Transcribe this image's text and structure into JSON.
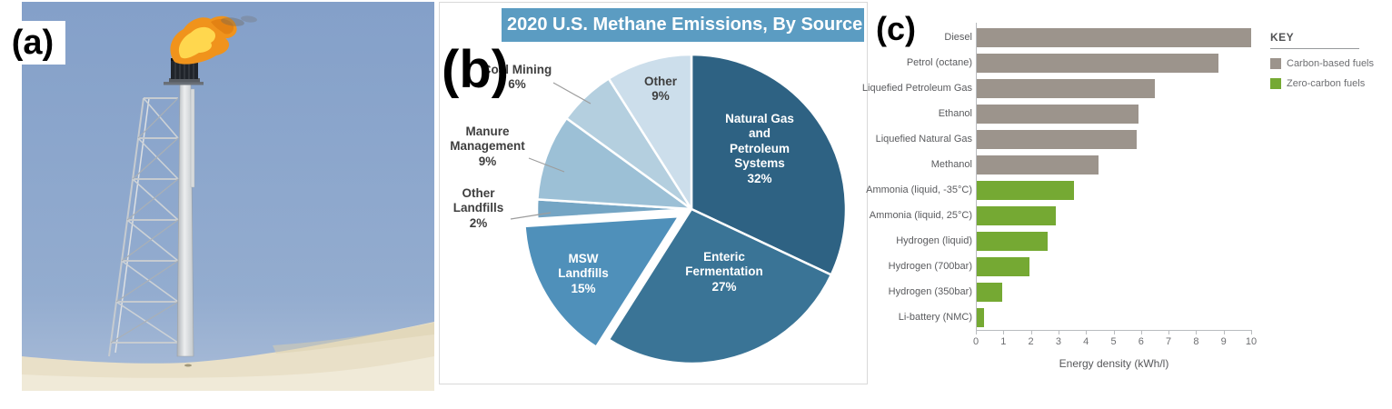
{
  "figure": {
    "panel_a_label": "(a)",
    "panel_b_label": "(b)",
    "panel_c_label": "(c)"
  },
  "chart_data": [
    {
      "type": "pie",
      "title": "2020 U.S. Methane Emissions, By Source",
      "title_bar_color": "#5b9cc2",
      "direction": "clockwise",
      "start_angle_deg_from_top": 0,
      "slices": [
        {
          "label": "Natural Gas and Petroleum Systems",
          "pct": 32,
          "color": "#2e6283",
          "label_lines": [
            "Natural Gas",
            "and",
            "Petroleum",
            "Systems",
            "32%"
          ],
          "label_placement": "inside",
          "exploded": false
        },
        {
          "label": "Enteric Fermentation",
          "pct": 27,
          "color": "#3a7496",
          "label_lines": [
            "Enteric",
            "Fermentation",
            "27%"
          ],
          "label_placement": "inside",
          "exploded": false
        },
        {
          "label": "MSW Landfills",
          "pct": 15,
          "color": "#4f90ba",
          "label_lines": [
            "MSW",
            "Landfills",
            "15%"
          ],
          "label_placement": "inside",
          "exploded": true
        },
        {
          "label": "Other Landfills",
          "pct": 2,
          "color": "#74a5c4",
          "label_lines": [
            "Other",
            "Landfills",
            "2%"
          ],
          "label_placement": "outside",
          "exploded": false
        },
        {
          "label": "Manure Management",
          "pct": 9,
          "color": "#9cc0d6",
          "label_lines": [
            "Manure",
            "Management",
            "9%"
          ],
          "label_placement": "outside",
          "exploded": false
        },
        {
          "label": "Coal Mining",
          "pct": 6,
          "color": "#b4cfdf",
          "label_lines": [
            "Coal Mining",
            "6%"
          ],
          "label_placement": "outside",
          "exploded": false
        },
        {
          "label": "Other",
          "pct": 9,
          "color": "#ccdeeb",
          "label_lines": [
            "Other",
            "9%"
          ],
          "label_placement": "outside",
          "exploded": false
        }
      ]
    },
    {
      "type": "bar",
      "orientation": "horizontal",
      "xlabel": "Energy density (kWh/l)",
      "xlim": [
        0,
        10
      ],
      "xticks": [
        0,
        1,
        2,
        3,
        4,
        5,
        6,
        7,
        8,
        9,
        10
      ],
      "grid": false,
      "bars": [
        {
          "label": "Diesel",
          "value": 10.0,
          "group": "Carbon-based fuels"
        },
        {
          "label": "Petrol (octane)",
          "value": 8.8,
          "group": "Carbon-based fuels"
        },
        {
          "label": "Liquefied Petroleum Gas",
          "value": 6.5,
          "group": "Carbon-based fuels"
        },
        {
          "label": "Ethanol",
          "value": 5.9,
          "group": "Carbon-based fuels"
        },
        {
          "label": "Liquefied Natural Gas",
          "value": 5.85,
          "group": "Carbon-based fuels"
        },
        {
          "label": "Methanol",
          "value": 4.45,
          "group": "Carbon-based fuels"
        },
        {
          "label": "Ammonia (liquid, -35°C)",
          "value": 3.55,
          "group": "Zero-carbon fuels"
        },
        {
          "label": "Ammonia (liquid, 25°C)",
          "value": 2.9,
          "group": "Zero-carbon fuels"
        },
        {
          "label": "Hydrogen (liquid)",
          "value": 2.6,
          "group": "Zero-carbon fuels"
        },
        {
          "label": "Hydrogen (700bar)",
          "value": 1.95,
          "group": "Zero-carbon fuels"
        },
        {
          "label": "Hydrogen (350bar)",
          "value": 0.95,
          "group": "Zero-carbon fuels"
        },
        {
          "label": "Li-battery (NMC)",
          "value": 0.3,
          "group": "Zero-carbon fuels"
        }
      ],
      "legend": {
        "title": "KEY",
        "position": "top-right",
        "items": [
          {
            "label": "Carbon-based fuels",
            "color": "#9c948c"
          },
          {
            "label": "Zero-carbon fuels",
            "color": "#75a933"
          }
        ]
      }
    }
  ]
}
